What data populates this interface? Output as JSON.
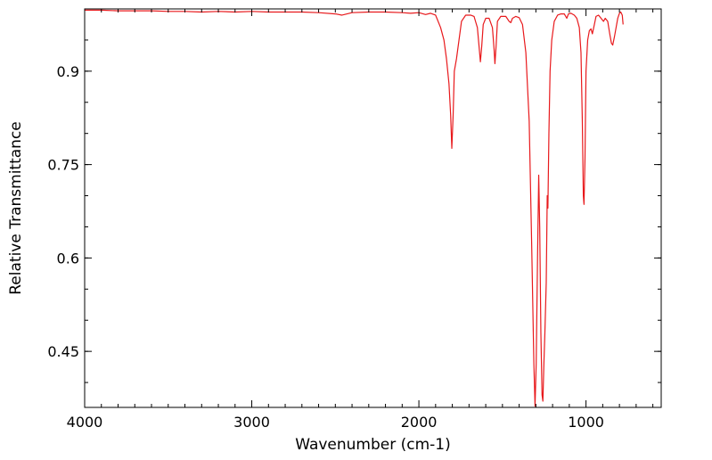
{
  "chart_data": {
    "type": "line",
    "title": "",
    "xlabel": "Wavenumber (cm-1)",
    "ylabel": "Relative Transmittance",
    "xlim": [
      4000,
      550
    ],
    "ylim": [
      0.36,
      1.0
    ],
    "x_reversed": true,
    "x_ticks": [
      4000,
      3000,
      2000,
      1000
    ],
    "x_tick_labels": [
      "4000",
      "3000",
      "2000",
      "1000"
    ],
    "y_ticks": [
      0.9,
      0.75,
      0.6,
      0.45
    ],
    "y_tick_labels": [
      "0.9",
      "0.75",
      "0.6",
      "0.45"
    ],
    "grid": false,
    "legend": "none",
    "series": [
      {
        "color": "#e8191c",
        "points": [
          [
            4000,
            0.998
          ],
          [
            3900,
            0.998
          ],
          [
            3800,
            0.997
          ],
          [
            3700,
            0.997
          ],
          [
            3600,
            0.997
          ],
          [
            3500,
            0.996
          ],
          [
            3400,
            0.996
          ],
          [
            3300,
            0.995
          ],
          [
            3200,
            0.996
          ],
          [
            3100,
            0.995
          ],
          [
            3000,
            0.996
          ],
          [
            2900,
            0.995
          ],
          [
            2800,
            0.995
          ],
          [
            2700,
            0.995
          ],
          [
            2600,
            0.994
          ],
          [
            2500,
            0.992
          ],
          [
            2460,
            0.99
          ],
          [
            2400,
            0.994
          ],
          [
            2300,
            0.995
          ],
          [
            2200,
            0.995
          ],
          [
            2100,
            0.994
          ],
          [
            2050,
            0.993
          ],
          [
            2000,
            0.994
          ],
          [
            1960,
            0.991
          ],
          [
            1930,
            0.993
          ],
          [
            1900,
            0.99
          ],
          [
            1870,
            0.97
          ],
          [
            1850,
            0.95
          ],
          [
            1835,
            0.92
          ],
          [
            1820,
            0.88
          ],
          [
            1810,
            0.83
          ],
          [
            1803,
            0.776
          ],
          [
            1795,
            0.83
          ],
          [
            1788,
            0.9
          ],
          [
            1775,
            0.92
          ],
          [
            1760,
            0.95
          ],
          [
            1745,
            0.98
          ],
          [
            1720,
            0.99
          ],
          [
            1690,
            0.99
          ],
          [
            1670,
            0.988
          ],
          [
            1650,
            0.97
          ],
          [
            1640,
            0.94
          ],
          [
            1632,
            0.915
          ],
          [
            1624,
            0.94
          ],
          [
            1615,
            0.975
          ],
          [
            1600,
            0.985
          ],
          [
            1580,
            0.985
          ],
          [
            1560,
            0.97
          ],
          [
            1550,
            0.935
          ],
          [
            1545,
            0.912
          ],
          [
            1538,
            0.94
          ],
          [
            1530,
            0.98
          ],
          [
            1510,
            0.988
          ],
          [
            1480,
            0.988
          ],
          [
            1460,
            0.98
          ],
          [
            1450,
            0.978
          ],
          [
            1440,
            0.985
          ],
          [
            1420,
            0.988
          ],
          [
            1400,
            0.986
          ],
          [
            1380,
            0.975
          ],
          [
            1360,
            0.93
          ],
          [
            1340,
            0.82
          ],
          [
            1325,
            0.62
          ],
          [
            1312,
            0.43
          ],
          [
            1305,
            0.362
          ],
          [
            1298,
            0.43
          ],
          [
            1290,
            0.6
          ],
          [
            1283,
            0.733
          ],
          [
            1277,
            0.65
          ],
          [
            1270,
            0.48
          ],
          [
            1263,
            0.38
          ],
          [
            1258,
            0.37
          ],
          [
            1252,
            0.43
          ],
          [
            1246,
            0.48
          ],
          [
            1238,
            0.56
          ],
          [
            1232,
            0.7
          ],
          [
            1228,
            0.68
          ],
          [
            1222,
            0.8
          ],
          [
            1215,
            0.9
          ],
          [
            1205,
            0.95
          ],
          [
            1190,
            0.98
          ],
          [
            1170,
            0.99
          ],
          [
            1150,
            0.992
          ],
          [
            1130,
            0.992
          ],
          [
            1115,
            0.985
          ],
          [
            1105,
            0.992
          ],
          [
            1090,
            0.993
          ],
          [
            1070,
            0.99
          ],
          [
            1055,
            0.985
          ],
          [
            1040,
            0.97
          ],
          [
            1030,
            0.93
          ],
          [
            1022,
            0.82
          ],
          [
            1016,
            0.7
          ],
          [
            1012,
            0.686
          ],
          [
            1006,
            0.76
          ],
          [
            1000,
            0.9
          ],
          [
            990,
            0.95
          ],
          [
            980,
            0.965
          ],
          [
            970,
            0.968
          ],
          [
            962,
            0.96
          ],
          [
            950,
            0.975
          ],
          [
            940,
            0.988
          ],
          [
            925,
            0.99
          ],
          [
            910,
            0.985
          ],
          [
            895,
            0.98
          ],
          [
            885,
            0.985
          ],
          [
            870,
            0.98
          ],
          [
            858,
            0.96
          ],
          [
            848,
            0.945
          ],
          [
            840,
            0.942
          ],
          [
            830,
            0.955
          ],
          [
            820,
            0.97
          ],
          [
            810,
            0.985
          ],
          [
            800,
            0.993
          ],
          [
            792,
            0.995
          ],
          [
            783,
            0.99
          ],
          [
            778,
            0.975
          ]
        ]
      }
    ]
  }
}
